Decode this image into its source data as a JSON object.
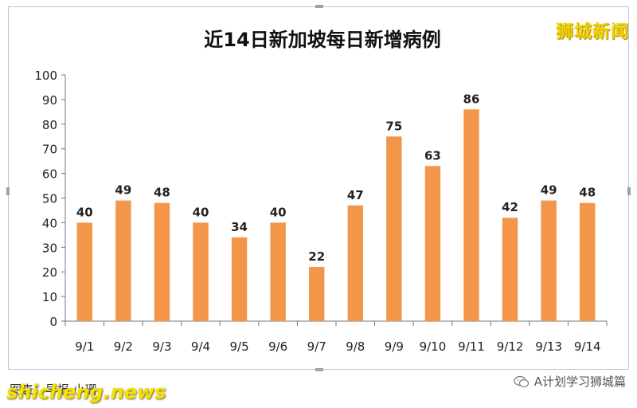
{
  "chart_data": {
    "type": "bar",
    "title": "近14日新加坡每日新增病例",
    "categories": [
      "9/1",
      "9/2",
      "9/3",
      "9/4",
      "9/5",
      "9/6",
      "9/7",
      "9/8",
      "9/9",
      "9/10",
      "9/11",
      "9/12",
      "9/13",
      "9/14"
    ],
    "values": [
      40,
      49,
      48,
      40,
      34,
      40,
      22,
      47,
      75,
      63,
      86,
      42,
      49,
      48
    ],
    "ylim": [
      0,
      100
    ],
    "yticks": [
      0,
      10,
      20,
      30,
      40,
      50,
      60,
      70,
      80,
      90,
      100
    ],
    "bar_color": "#f4964a",
    "data_labels": true,
    "grid": false
  },
  "watermarks": {
    "brand": "狮城新闻",
    "credit": "图表：早报·小珊",
    "site": "shicheng.news",
    "account": "A计划学习狮城篇",
    "account_icon": "wechat-icon"
  }
}
